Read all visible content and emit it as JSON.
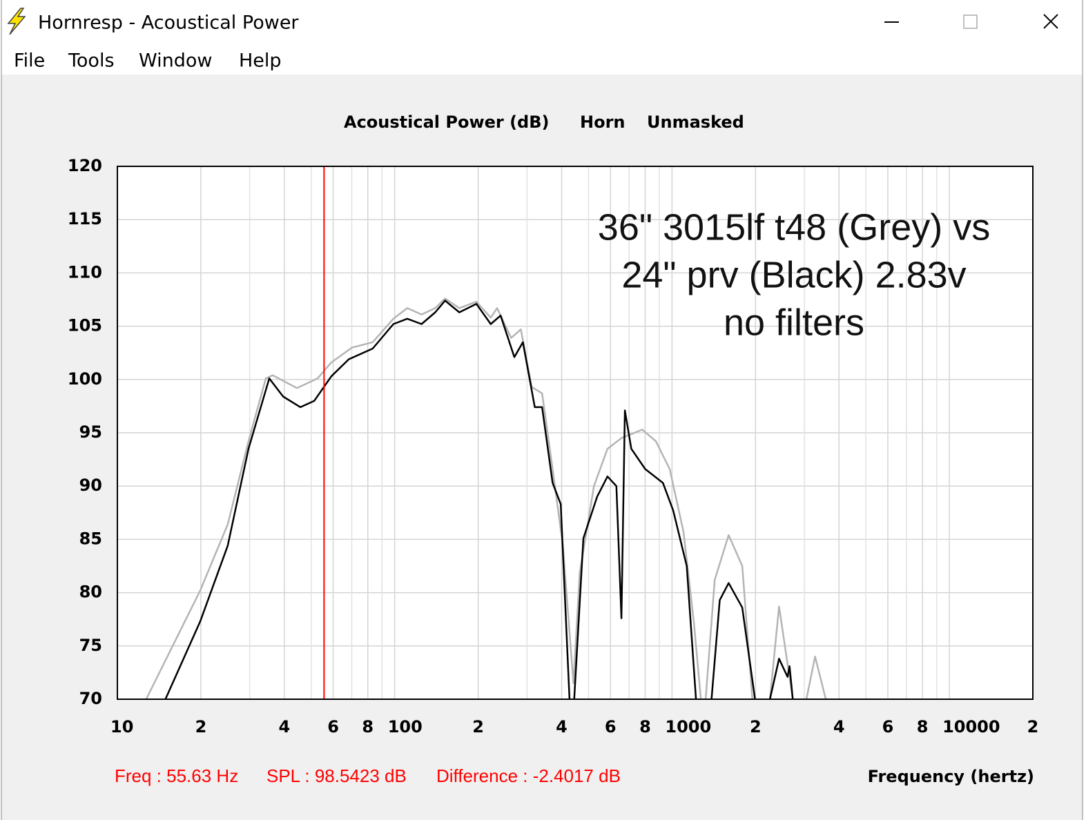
{
  "window": {
    "title": "Hornresp - Acoustical Power"
  },
  "menu": [
    "File",
    "Tools",
    "Window",
    "Help"
  ],
  "chart_data": {
    "type": "line",
    "title": [
      "Acoustical Power (dB)",
      "Horn",
      "Unmasked"
    ],
    "xlabel": "Frequency (hertz)",
    "annotation": [
      "36\" 3015lf t48 (Grey) vs",
      "24\" prv (Black) 2.83v",
      "no filters"
    ],
    "status": [
      "Freq : 55.63 Hz",
      "SPL : 98.5423 dB",
      "Difference : -2.4017 dB"
    ],
    "cursor_x": 55.63,
    "cursor_color": "#ff0000",
    "log_x": true,
    "grid": true,
    "xlim": [
      10,
      20000
    ],
    "xticks": [
      10,
      {
        "value": 20,
        "label": "2"
      },
      {
        "value": 40,
        "label": "4"
      },
      {
        "value": 60,
        "label": "6"
      },
      {
        "value": 80,
        "label": "8"
      },
      100,
      {
        "value": 200,
        "label": "2"
      },
      {
        "value": 400,
        "label": "4"
      },
      {
        "value": 600,
        "label": "6"
      },
      {
        "value": 800,
        "label": "8"
      },
      1000,
      {
        "value": 2000,
        "label": "2"
      },
      {
        "value": 4000,
        "label": "4"
      },
      {
        "value": 6000,
        "label": "6"
      },
      {
        "value": 8000,
        "label": "8"
      },
      10000,
      {
        "value": 20000,
        "label": "2"
      }
    ],
    "x_minor_ticks": [
      30,
      50,
      70,
      90,
      300,
      500,
      700,
      900,
      3000,
      5000,
      7000,
      9000
    ],
    "ylim": [
      70,
      120
    ],
    "yticks": [
      70,
      75,
      80,
      85,
      90,
      95,
      100,
      105,
      110,
      115,
      120
    ],
    "series": [
      {
        "name": "Grey",
        "color": "#b4b4b4",
        "x": [
          12.7,
          19.9,
          25,
          29.7,
          34.3,
          36.3,
          44.4,
          52.7,
          59.1,
          70.2,
          83.3,
          98.9,
          111,
          125,
          140,
          152,
          171,
          197,
          222,
          234,
          263,
          285,
          312,
          340,
          371,
          404,
          441,
          465,
          523,
          585,
          657,
          781,
          875,
          981,
          1100,
          1198,
          1271,
          1300,
          1322,
          1425,
          1600,
          1791,
          1949,
          2100,
          2254,
          2432,
          2725,
          2900,
          3051,
          3279,
          3584
        ],
        "values": [
          70,
          80.2,
          86.4,
          94.2,
          100.1,
          100.4,
          99.2,
          100.1,
          101.6,
          103.0,
          103.5,
          105.7,
          106.7,
          106.1,
          106.7,
          107.6,
          106.7,
          107.3,
          105.8,
          106.7,
          103.9,
          104.7,
          99.3,
          98.7,
          91.6,
          84.4,
          71.5,
          81.9,
          90.0,
          93.5,
          94.5,
          95.3,
          94.2,
          91.6,
          85.7,
          77.3,
          70,
          null,
          70,
          81.2,
          85.4,
          82.5,
          70,
          null,
          70,
          78.7,
          70,
          null,
          70,
          74.0,
          70
        ]
      },
      {
        "name": "Black",
        "color": "#000000",
        "x": [
          14.9,
          19.9,
          25,
          29.7,
          35.3,
          39.6,
          45.7,
          51.3,
          59.1,
          68.3,
          83.3,
          98.9,
          111,
          125,
          140,
          152,
          171,
          197,
          222,
          241,
          270,
          290,
          320,
          340,
          371,
          397,
          427,
          435,
          444,
          479,
          537,
          585,
          630,
          657,
          676,
          713,
          800,
          927,
          1010,
          1130,
          1220,
          1300,
          1388,
          1486,
          1600,
          1791,
          1992,
          2100,
          2254,
          2432,
          2609,
          2653,
          2725
        ],
        "values": [
          70,
          77.3,
          84.4,
          93.5,
          100.1,
          98.4,
          97.4,
          98.0,
          100.3,
          101.9,
          102.9,
          105.2,
          105.7,
          105.2,
          106.3,
          107.4,
          106.3,
          107.1,
          105.2,
          106.0,
          102.1,
          103.5,
          97.4,
          97.4,
          90.3,
          88.3,
          70,
          null,
          70,
          85.1,
          89.0,
          90.9,
          90.0,
          77.6,
          97.1,
          93.5,
          91.6,
          90.3,
          87.7,
          82.5,
          70,
          null,
          70,
          79.3,
          80.9,
          78.6,
          70,
          null,
          70,
          73.8,
          72.1,
          73.1,
          70
        ]
      }
    ]
  }
}
